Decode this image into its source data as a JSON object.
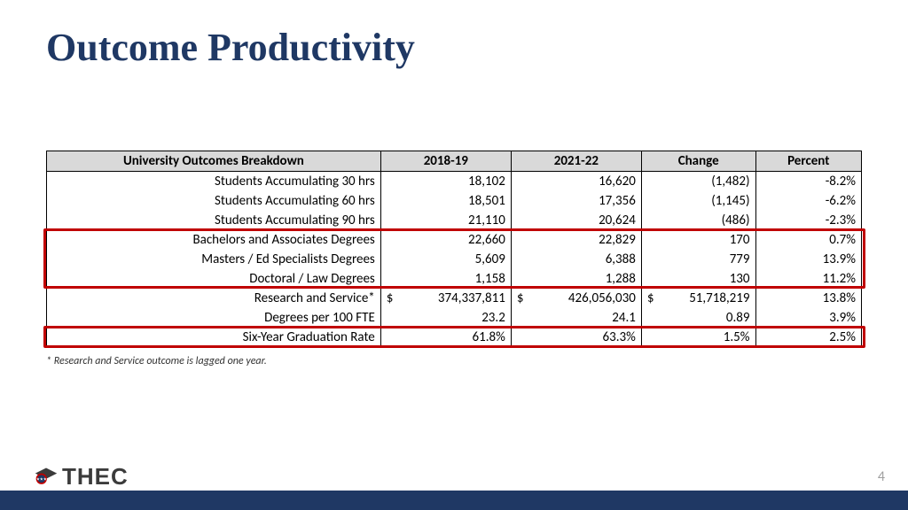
{
  "title": "Outcome Productivity",
  "table": {
    "columns": [
      "University Outcomes Breakdown",
      "2018-19",
      "2021-22",
      "Change",
      "Percent"
    ],
    "col_widths_pct": [
      41,
      16,
      16,
      14,
      13
    ],
    "header_bg": "#d9d9d9",
    "border_color": "#000000",
    "rows": [
      {
        "label": "Students Accumulating 30 hrs",
        "v1": "18,102",
        "v2": "16,620",
        "change": "(1,482)",
        "pct": "-8.2%",
        "currency": false,
        "highlight": false
      },
      {
        "label": "Students Accumulating 60 hrs",
        "v1": "18,501",
        "v2": "17,356",
        "change": "(1,145)",
        "pct": "-6.2%",
        "currency": false,
        "highlight": false
      },
      {
        "label": "Students Accumulating 90 hrs",
        "v1": "21,110",
        "v2": "20,624",
        "change": "(486)",
        "pct": "-2.3%",
        "currency": false,
        "highlight": false
      },
      {
        "label": "Bachelors and Associates Degrees",
        "v1": "22,660",
        "v2": "22,829",
        "change": "170",
        "pct": "0.7%",
        "currency": false,
        "highlight": true
      },
      {
        "label": "Masters / Ed Specialists Degrees",
        "v1": "5,609",
        "v2": "6,388",
        "change": "779",
        "pct": "13.9%",
        "currency": false,
        "highlight": true
      },
      {
        "label": "Doctoral / Law Degrees",
        "v1": "1,158",
        "v2": "1,288",
        "change": "130",
        "pct": "11.2%",
        "currency": false,
        "highlight": true
      },
      {
        "label": "Research and Service*",
        "v1": "374,337,811",
        "v2": "426,056,030",
        "change": "51,718,219",
        "pct": "13.8%",
        "currency": true,
        "highlight": false
      },
      {
        "label": "Degrees per 100 FTE",
        "v1": "23.2",
        "v2": "24.1",
        "change": "0.89",
        "pct": "3.9%",
        "currency": false,
        "highlight": false
      },
      {
        "label": "Six-Year Graduation Rate",
        "v1": "61.8%",
        "v2": "63.3%",
        "change": "1.5%",
        "pct": "2.5%",
        "currency": false,
        "highlight": true
      }
    ]
  },
  "footnote": "* Research and Service outcome is lagged one year.",
  "highlight_color": "#c00000",
  "footer": {
    "bar_color": "#1f3864",
    "logo_text": "THEC",
    "page_number": "4"
  },
  "colors": {
    "title": "#1f3864",
    "background": "#ffffff",
    "page_number": "#9e9e9e"
  },
  "title_fontsize": 44,
  "table_fontsize": 15
}
